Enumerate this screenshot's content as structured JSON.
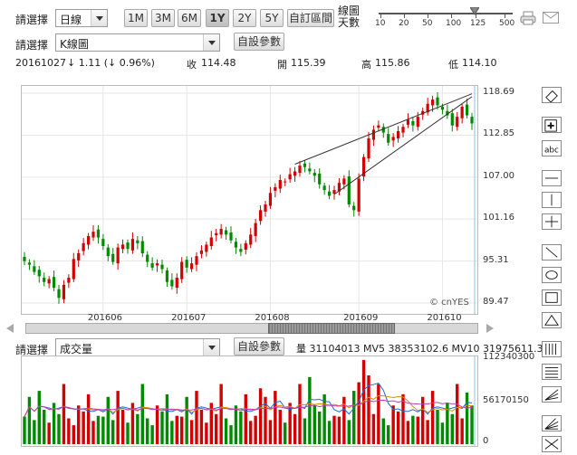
{
  "toolbar": {
    "select_label": "請選擇",
    "period_value": "日線",
    "ranges": [
      "1M",
      "3M",
      "6M",
      "1Y",
      "2Y",
      "5Y"
    ],
    "active_range": "1Y",
    "custom_range_label": "自訂區間",
    "chart_type_value": "K線圖",
    "settings_label": "自設參數",
    "days_label_1": "線圖",
    "days_label_2": "天數",
    "days_ticks": [
      "10",
      "20",
      "50",
      "100",
      "125",
      "500"
    ],
    "days_value": 125
  },
  "quote": {
    "date": "20161027",
    "change": "↓ 1.11 (↓ 0.96%)",
    "close_label": "收",
    "close": "114.48",
    "open_label": "開",
    "open": "115.39",
    "high_label": "高",
    "high": "115.86",
    "low_label": "低",
    "low": "114.10"
  },
  "watermark": "© cnYES",
  "lower_panel": {
    "select_label": "請選擇",
    "indicator_value": "成交量",
    "settings_label": "自設參數",
    "stats": "量 31104013  MV5 38353102.6  MV10 31975611.3  MV"
  },
  "colors": {
    "up": "#d40000",
    "down": "#008a00",
    "mv5": "#1e6fd9",
    "mv10": "#e08a00",
    "mv20": "#c23cbd"
  },
  "chart_data": [
    {
      "type": "candlestick",
      "y_ticks": [
        "118.69",
        "112.85",
        "107.00",
        "101.16",
        "95.31",
        "89.47"
      ],
      "ylim": [
        89.47,
        118.69
      ],
      "x_ticks": [
        "201606",
        "201607",
        "201608",
        "201609",
        "201610"
      ],
      "closes": [
        95.3,
        94.8,
        93.8,
        93.2,
        92.4,
        92.8,
        91.6,
        90.2,
        92.0,
        93.0,
        95.6,
        96.4,
        97.8,
        98.8,
        99.4,
        98.6,
        97.4,
        96.0,
        95.2,
        97.2,
        97.6,
        97.0,
        98.4,
        97.8,
        96.4,
        95.2,
        94.4,
        95.0,
        94.2,
        92.4,
        91.8,
        93.0,
        95.2,
        94.4,
        95.0,
        96.0,
        96.8,
        97.6,
        98.6,
        99.2,
        99.8,
        99.0,
        98.2,
        97.2,
        96.6,
        97.8,
        99.0,
        100.6,
        102.4,
        103.2,
        104.8,
        105.6,
        106.6,
        106.4,
        107.4,
        107.8,
        108.6,
        108.4,
        107.8,
        107.2,
        106.0,
        105.2,
        104.4,
        105.2,
        106.2,
        106.8,
        103.2,
        102.4,
        106.8,
        109.8,
        112.4,
        113.6,
        114.2,
        113.2,
        111.8,
        112.6,
        113.4,
        114.0,
        115.0,
        114.2,
        115.4,
        116.2,
        117.2,
        117.8,
        117.0,
        116.4,
        115.6,
        114.2,
        115.4,
        116.8,
        115.6,
        114.48
      ],
      "ohlc_summary": {
        "date": "20161027",
        "open": 115.39,
        "high": 115.86,
        "low": 114.1,
        "close": 114.48
      },
      "trendlines": "rising wedge over 201608–201610"
    },
    {
      "type": "bar",
      "title": "成交量",
      "y_ticks": [
        "112340300",
        "56170150",
        "0"
      ],
      "ylim": [
        0,
        112340300
      ],
      "volume": 31104013,
      "mv5": 38353102.6,
      "mv10": 31975611.3
    }
  ]
}
